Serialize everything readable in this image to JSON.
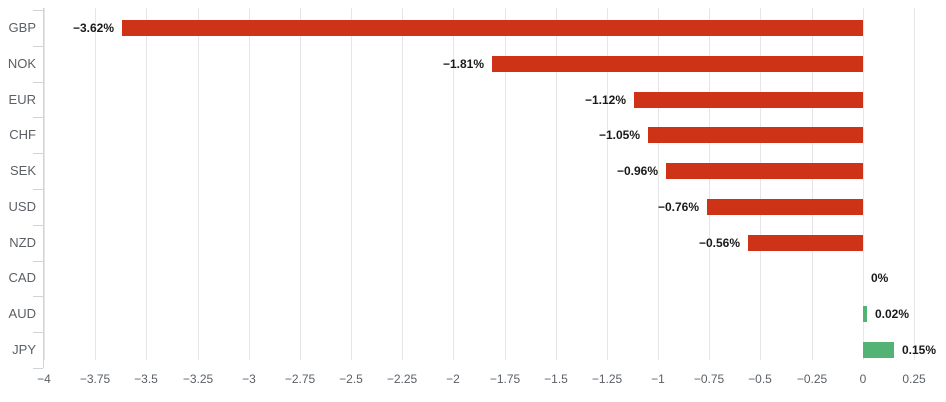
{
  "chart_data": {
    "type": "bar",
    "orientation": "horizontal",
    "categories": [
      "GBP",
      "NOK",
      "EUR",
      "CHF",
      "SEK",
      "USD",
      "NZD",
      "CAD",
      "AUD",
      "JPY"
    ],
    "values": [
      -3.62,
      -1.81,
      -1.12,
      -1.05,
      -0.96,
      -0.76,
      -0.56,
      0,
      0.02,
      0.15
    ],
    "value_labels": [
      "−3.62%",
      "−1.81%",
      "−1.12%",
      "−1.05%",
      "−0.96%",
      "−0.76%",
      "−0.56%",
      "0%",
      "0.02%",
      "0.15%"
    ],
    "x_axis": {
      "min": -4,
      "max": 0.25,
      "tick_step": 0.25,
      "tick_labels": [
        "−4",
        "−3.75",
        "−3.5",
        "−3.25",
        "−3",
        "−2.75",
        "−2.5",
        "−2.25",
        "−2",
        "−1.75",
        "−1.5",
        "−1.25",
        "−1",
        "−0.75",
        "−0.5",
        "−0.25",
        "0",
        "0.25"
      ]
    },
    "grid": "vertical",
    "legend": "none",
    "colors": {
      "negative_bar": "#ce3318",
      "positive_bar": "#53b375",
      "gridline": "#e6e6e6",
      "axis_line": "#cfd4d8",
      "value_label": "#1a1a1a",
      "category_label": "#5b6066",
      "tick_label": "#5b6066"
    }
  }
}
